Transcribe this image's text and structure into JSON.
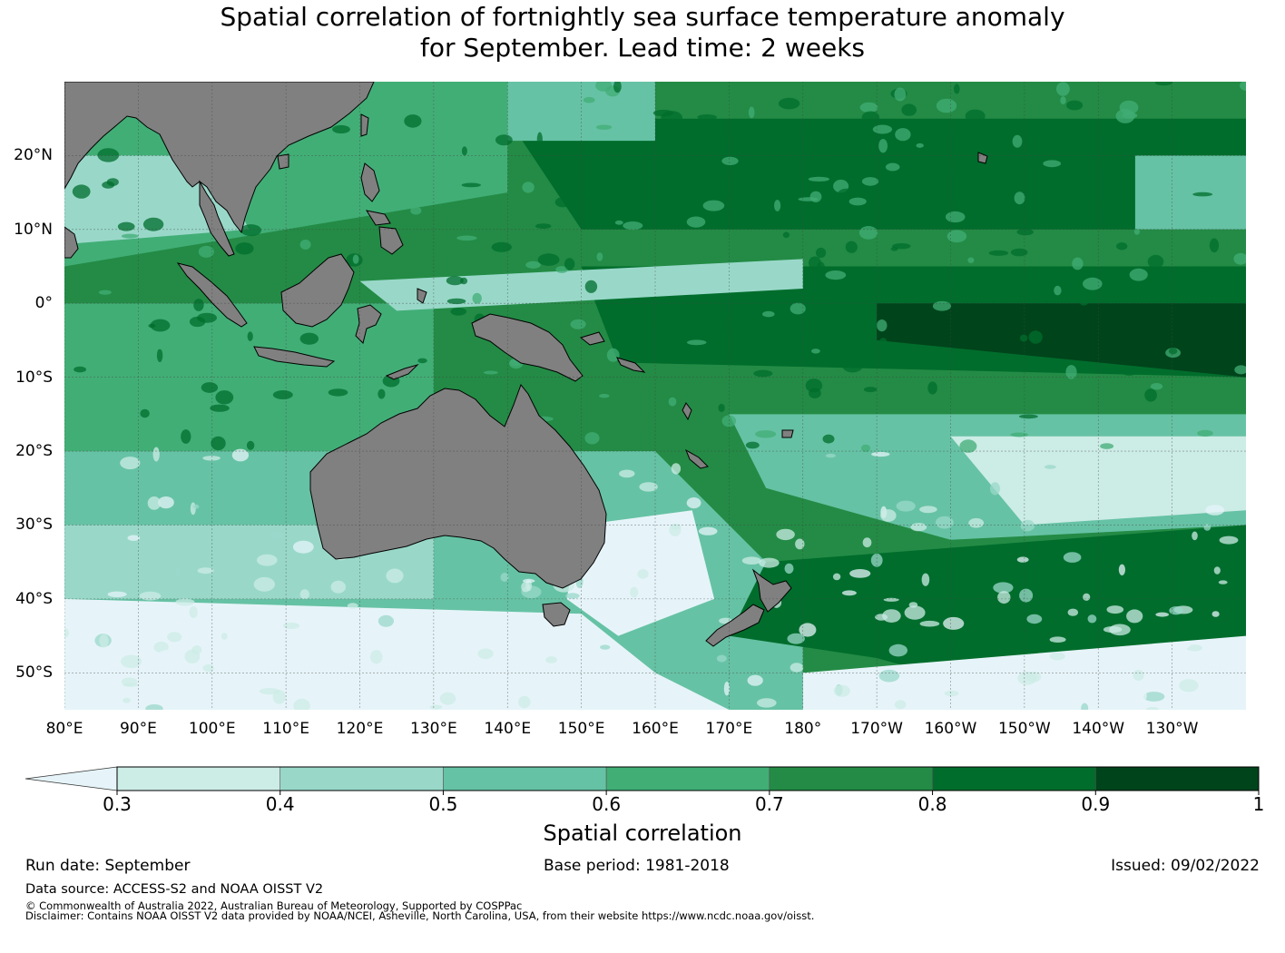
{
  "title": {
    "line1": "Spatial correlation of fortnightly sea surface temperature anomaly",
    "line2": "for September. Lead time: 2 weeks"
  },
  "map": {
    "lon_range": [
      80,
      240
    ],
    "lat_range": [
      -55,
      30
    ],
    "lat_labels": [
      "20°N",
      "10°N",
      "0°",
      "10°S",
      "20°S",
      "30°S",
      "40°S",
      "50°S"
    ],
    "lat_values": [
      20,
      10,
      0,
      -10,
      -20,
      -30,
      -40,
      -50
    ],
    "lon_labels": [
      "80°E",
      "90°E",
      "100°E",
      "110°E",
      "120°E",
      "130°E",
      "140°E",
      "150°E",
      "160°E",
      "170°E",
      "180°",
      "170°W",
      "160°W",
      "150°W",
      "140°W",
      "130°W"
    ],
    "lon_values": [
      80,
      90,
      100,
      110,
      120,
      130,
      140,
      150,
      160,
      170,
      180,
      190,
      200,
      210,
      220,
      230
    ],
    "land_color": "#808080"
  },
  "colorbar": {
    "ticks": [
      "0.3",
      "0.4",
      "0.5",
      "0.6",
      "0.7",
      "0.8",
      "0.9",
      "1"
    ],
    "under_color": "#e6f4f9",
    "colors": [
      "#ccece6",
      "#99d8c9",
      "#66c2a4",
      "#41ae76",
      "#238b45",
      "#006d2c",
      "#00441b"
    ],
    "label": "Spatial correlation"
  },
  "footer": {
    "run_date": "Run date: September",
    "base_period": "Base period: 1981-2018",
    "issued": "Issued: 09/02/2022",
    "data_source": "Data source: ACCESS-S2 and NOAA OISST V2",
    "copyright": "© Commonwealth of Australia 2022, Australian Bureau of Meteorology, Supported by COSPPac",
    "disclaimer": "Disclaimer: Contains NOAA OISST V2 data provided by NOAA/NCEI, Asheville, North Carolina, USA, from their website https://www.ncdc.noaa.gov/oisst."
  }
}
